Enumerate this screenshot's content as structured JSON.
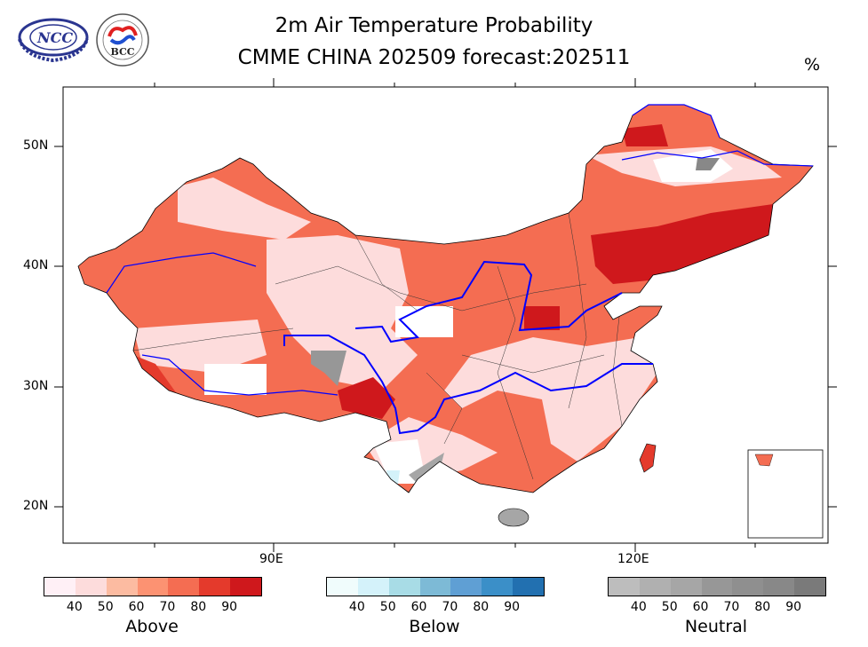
{
  "header": {
    "title_line1": "2m Air Temperature Probability",
    "title_line2": "CMME CHINA 202509 forecast:202511",
    "unit": "%",
    "logos": [
      {
        "name": "NCC",
        "text": "NCC"
      },
      {
        "name": "BCC",
        "text": "BCC"
      }
    ]
  },
  "map": {
    "lat_labels": [
      "50N",
      "40N",
      "30N",
      "20N"
    ],
    "lon_labels": [
      "90E",
      "120E"
    ]
  },
  "legends": [
    {
      "name": "Above",
      "ticks": [
        "40",
        "50",
        "60",
        "70",
        "80",
        "90"
      ],
      "colors": [
        "#fff0f6",
        "#fddcdc",
        "#fcbba1",
        "#fc9272",
        "#f46d52",
        "#e43a2c",
        "#cf181c"
      ]
    },
    {
      "name": "Below",
      "ticks": [
        "40",
        "50",
        "60",
        "70",
        "80",
        "90"
      ],
      "colors": [
        "#f0fcfc",
        "#d4f2fa",
        "#a8dce6",
        "#7dbad6",
        "#5f9fd4",
        "#3b8fc8",
        "#2270b0"
      ]
    },
    {
      "name": "Neutral",
      "ticks": [
        "40",
        "50",
        "60",
        "70",
        "80",
        "90"
      ],
      "colors": [
        "#bdbdbd",
        "#b0b0b0",
        "#a6a6a6",
        "#979797",
        "#8f8f8f",
        "#888888",
        "#7a7a7a"
      ]
    }
  ]
}
